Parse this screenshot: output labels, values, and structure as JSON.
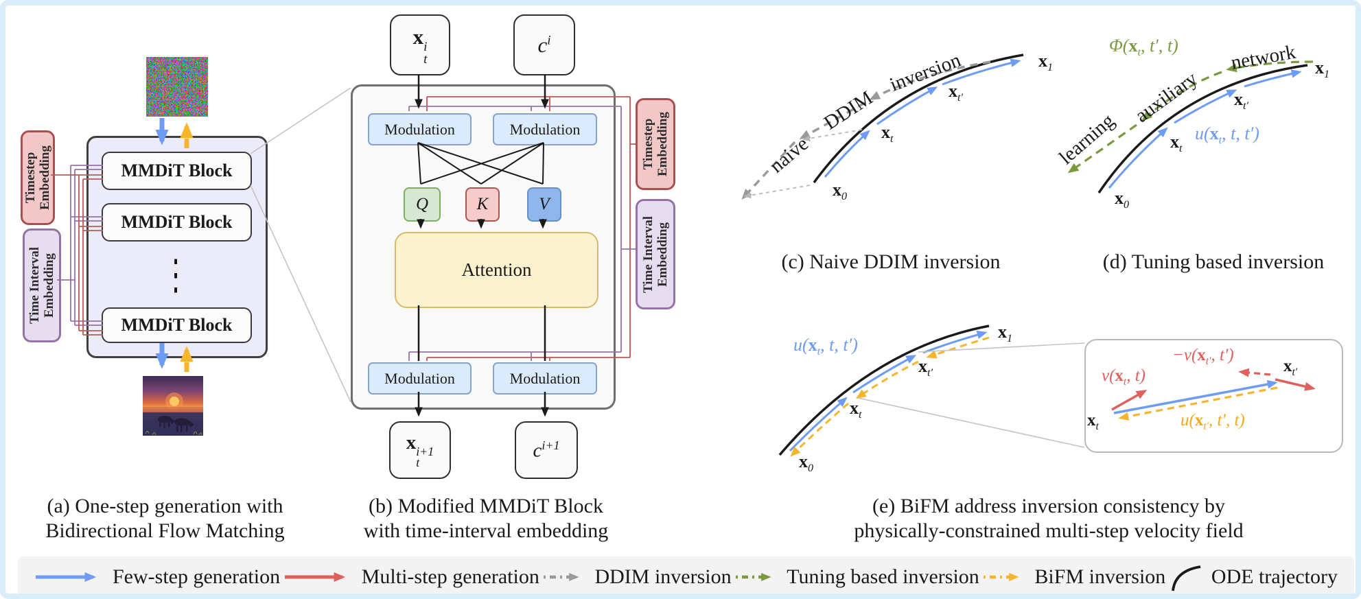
{
  "colors": {
    "frame": "#d9edfb",
    "few_step_blue": "#6e9bf4",
    "multi_step_red": "#e0605e",
    "ddim_gray": "#9a9a9a",
    "tuning_green": "#7b9a3f",
    "bifm_yellow": "#f7b52d",
    "ode_black": "#1a1a1a",
    "wire_red": "#bb5a57",
    "wire_purple": "#9673a6",
    "panel_a_fill": "#ebebfa",
    "timestep_fill": "#f2c7c7",
    "timestep_border": "#a94f4f",
    "interval_fill": "#e7ddf0",
    "interval_border": "#9673a6",
    "modulation_fill": "#dcebfb",
    "q_fill": "#d6e8d3",
    "k_fill": "#f5cccb",
    "v_fill": "#8fb5ea",
    "attention_fill": "#fdf2cf"
  },
  "panel_a": {
    "caption": [
      "(a) One-step generation with",
      "Bidirectional Flow Matching"
    ],
    "timestep_embedding": [
      "Timestep",
      "Embedding"
    ],
    "time_interval_embedding": [
      "Time Interval",
      "Embedding"
    ],
    "blocks": [
      "MMDiT Block",
      "MMDiT Block",
      "MMDiT Block"
    ],
    "dots": "⋮",
    "noise_image": "random-noise-thumbnail",
    "result_image": "zebra-sunset-thumbnail"
  },
  "panel_b": {
    "caption": [
      "(b) Modified MMDiT Block",
      "with time-interval embedding"
    ],
    "input_x": "**x**^{i}_{t}",
    "input_c": "c^{i}",
    "modulation_labels": [
      "Modulation",
      "Modulation",
      "Modulation",
      "Modulation"
    ],
    "q": "Q",
    "k": "K",
    "v": "V",
    "attention": "Attention",
    "output_x": "**x**^{i+1}_{t}",
    "output_c": "c^{i+1}",
    "timestep_embedding": [
      "Timestep",
      "Embedding"
    ],
    "time_interval_embedding": [
      "Time Interval",
      "Embedding"
    ]
  },
  "panel_c": {
    "caption": "(c) Naive DDIM inversion",
    "rot_labels": {
      "naive": "naive",
      "ddim": "DDIM",
      "inversion": "inversion"
    },
    "points": {
      "x0": "**x**_{0}",
      "xt": "**x**_{t}",
      "xtp": "**x**_{t′}",
      "x1": "**x**_{1}"
    }
  },
  "panel_d": {
    "caption": "(d) Tuning based inversion",
    "phi": "Φ(**x**_{t}, t′, t)",
    "u": "u(**x**_{t}, t, t′)",
    "rot_labels": {
      "learning": "learning",
      "auxiliary": "auxiliary",
      "network": "network"
    },
    "points": {
      "x0": "**x**_{0}",
      "xt": "**x**_{t}",
      "xtp": "**x**_{t′}",
      "x1": "**x**_{1}"
    }
  },
  "panel_e": {
    "caption": [
      "(e) BiFM address inversion consistency by",
      "physically-constrained multi-step velocity field"
    ],
    "u_blue": "u(**x**_{t}, t, t′)",
    "points": {
      "x0": "**x**_{0}",
      "xt": "**x**_{t}",
      "xtp": "**x**_{t′}",
      "x1": "**x**_{1}"
    },
    "inset": {
      "v": "v(**x**_{t}, t)",
      "neg_v": "−v(**x**_{t′}, t′)",
      "u_yellow": "u(**x**_{t′}, t′, t)",
      "xt": "**x**_{t}",
      "xtp": "**x**_{t′}"
    }
  },
  "legend": {
    "items": [
      {
        "name": "few-step-generation",
        "label": "Few-step generation",
        "color": "#6e9bf4",
        "style": "solid-arrow"
      },
      {
        "name": "multi-step-generation",
        "label": "Multi-step generation",
        "color": "#e0605e",
        "style": "solid-arrow"
      },
      {
        "name": "ddim-inversion",
        "label": "DDIM inversion",
        "color": "#9a9a9a",
        "style": "dashed-arrow"
      },
      {
        "name": "tuning-based-inversion",
        "label": "Tuning based inversion",
        "color": "#7b9a3f",
        "style": "dashed-arrow"
      },
      {
        "name": "bifm-inversion",
        "label": "BiFM inversion",
        "color": "#f7b52d",
        "style": "dashed-arrow"
      },
      {
        "name": "ode-trajectory",
        "label": "ODE trajectory",
        "color": "#1a1a1a",
        "style": "curve"
      }
    ]
  }
}
